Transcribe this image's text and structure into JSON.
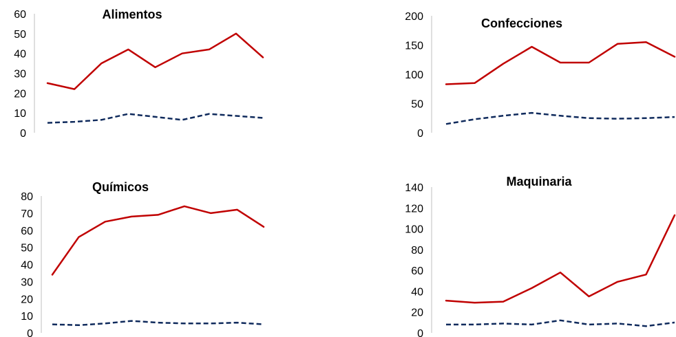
{
  "chart_data": [
    {
      "type": "line",
      "title": "Alimentos",
      "ylim": [
        0,
        60
      ],
      "yticks": [
        0,
        10,
        20,
        30,
        40,
        50,
        60
      ],
      "x": [
        1,
        2,
        3,
        4,
        5,
        6,
        7,
        8,
        9
      ],
      "series": [
        {
          "values": [
            25,
            22,
            35,
            42,
            33,
            40,
            42,
            50,
            38
          ],
          "color": "#c00000",
          "style": "solid"
        },
        {
          "values": [
            5,
            5.5,
            6.5,
            9.5,
            8,
            6.5,
            9.5,
            8.5,
            7.5
          ],
          "color": "#0f2a5c",
          "style": "dashed"
        }
      ]
    },
    {
      "type": "line",
      "title": "Confecciones",
      "ylim": [
        0,
        200
      ],
      "yticks": [
        0,
        50,
        100,
        150,
        200
      ],
      "x": [
        1,
        2,
        3,
        4,
        5,
        6,
        7,
        8,
        9
      ],
      "series": [
        {
          "values": [
            83,
            85,
            118,
            147,
            120,
            120,
            152,
            155,
            130
          ],
          "color": "#c00000",
          "style": "solid"
        },
        {
          "values": [
            15,
            23,
            29,
            34,
            29,
            25,
            24,
            25,
            27
          ],
          "color": "#0f2a5c",
          "style": "dashed"
        }
      ]
    },
    {
      "type": "line",
      "title": "Químicos",
      "ylim": [
        0,
        80
      ],
      "yticks": [
        0,
        10,
        20,
        30,
        40,
        50,
        60,
        70,
        80
      ],
      "x": [
        1,
        2,
        3,
        4,
        5,
        6,
        7,
        8,
        9
      ],
      "series": [
        {
          "values": [
            34,
            56,
            65,
            68,
            69,
            74,
            70,
            72,
            62
          ],
          "color": "#c00000",
          "style": "solid"
        },
        {
          "values": [
            5,
            4.5,
            5.5,
            7,
            6,
            5.5,
            5.5,
            6,
            5
          ],
          "color": "#0f2a5c",
          "style": "dashed"
        }
      ]
    },
    {
      "type": "line",
      "title": "Maquinaria",
      "ylim": [
        0,
        140
      ],
      "yticks": [
        0,
        20,
        40,
        60,
        80,
        100,
        120,
        140
      ],
      "x": [
        1,
        2,
        3,
        4,
        5,
        6,
        7,
        8,
        9
      ],
      "series": [
        {
          "values": [
            31,
            29,
            30,
            43,
            58,
            35,
            49,
            56,
            113
          ],
          "color": "#c00000",
          "style": "solid"
        },
        {
          "values": [
            8,
            8,
            9,
            8,
            12,
            8,
            9,
            6.5,
            10
          ],
          "color": "#0f2a5c",
          "style": "dashed"
        }
      ]
    }
  ]
}
